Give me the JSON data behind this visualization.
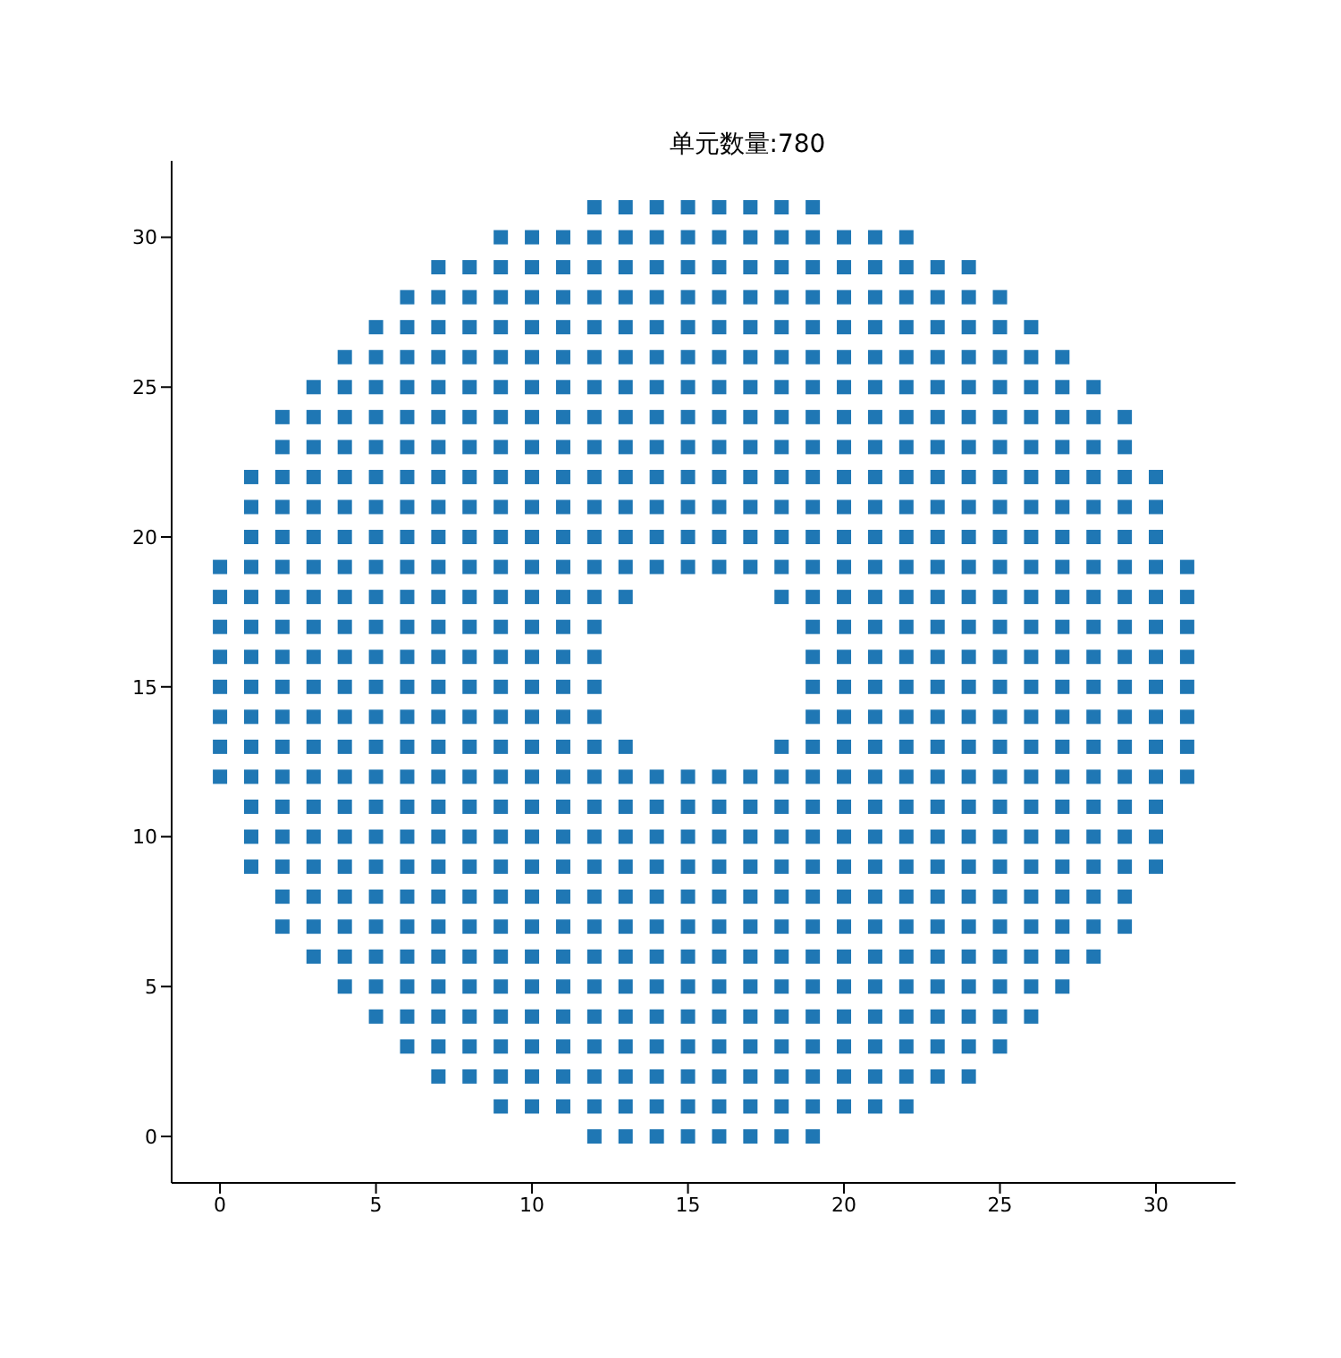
{
  "chart_data": {
    "type": "scatter",
    "title": "单元数量:780",
    "xlim": [
      -1.55,
      32.55
    ],
    "ylim": [
      -1.55,
      32.55
    ],
    "xticks": [
      0,
      5,
      10,
      15,
      20,
      25,
      30
    ],
    "yticks": [
      0,
      5,
      10,
      15,
      20,
      25,
      30
    ],
    "grid": false,
    "legend": false,
    "marker": "square",
    "series": [
      {
        "color": "#1f77b4",
        "x": [
          12,
          13,
          14,
          15,
          16,
          17,
          18,
          19
        ],
        "values": [
          0,
          0,
          0,
          0,
          0,
          0,
          0,
          0
        ]
      },
      {
        "color": "#1f77b4",
        "x": [
          9,
          10,
          11,
          12,
          13,
          14,
          15,
          16,
          17,
          18,
          19,
          20,
          21,
          22
        ],
        "values": [
          1,
          1,
          1,
          1,
          1,
          1,
          1,
          1,
          1,
          1,
          1,
          1,
          1,
          1
        ]
      },
      {
        "color": "#1f77b4",
        "x": [
          7,
          8,
          9,
          10,
          11,
          12,
          13,
          14,
          15,
          16,
          17,
          18,
          19,
          20,
          21,
          22,
          23,
          24
        ],
        "values": [
          2,
          2,
          2,
          2,
          2,
          2,
          2,
          2,
          2,
          2,
          2,
          2,
          2,
          2,
          2,
          2,
          2,
          2
        ]
      },
      {
        "color": "#1f77b4",
        "x": [
          6,
          7,
          8,
          9,
          10,
          11,
          12,
          13,
          14,
          15,
          16,
          17,
          18,
          19,
          20,
          21,
          22,
          23,
          24,
          25
        ],
        "values": [
          3,
          3,
          3,
          3,
          3,
          3,
          3,
          3,
          3,
          3,
          3,
          3,
          3,
          3,
          3,
          3,
          3,
          3,
          3,
          3
        ]
      },
      {
        "color": "#1f77b4",
        "x": [
          5,
          6,
          7,
          8,
          9,
          10,
          11,
          12,
          13,
          14,
          15,
          16,
          17,
          18,
          19,
          20,
          21,
          22,
          23,
          24,
          25,
          26
        ],
        "values": [
          4,
          4,
          4,
          4,
          4,
          4,
          4,
          4,
          4,
          4,
          4,
          4,
          4,
          4,
          4,
          4,
          4,
          4,
          4,
          4,
          4,
          4
        ]
      },
      {
        "color": "#1f77b4",
        "x": [
          4,
          5,
          6,
          7,
          8,
          9,
          10,
          11,
          12,
          13,
          14,
          15,
          16,
          17,
          18,
          19,
          20,
          21,
          22,
          23,
          24,
          25,
          26,
          27
        ],
        "values": [
          5,
          5,
          5,
          5,
          5,
          5,
          5,
          5,
          5,
          5,
          5,
          5,
          5,
          5,
          5,
          5,
          5,
          5,
          5,
          5,
          5,
          5,
          5,
          5
        ]
      },
      {
        "color": "#1f77b4",
        "x": [
          3,
          4,
          5,
          6,
          7,
          8,
          9,
          10,
          11,
          12,
          13,
          14,
          15,
          16,
          17,
          18,
          19,
          20,
          21,
          22,
          23,
          24,
          25,
          26,
          27,
          28
        ],
        "values": [
          6,
          6,
          6,
          6,
          6,
          6,
          6,
          6,
          6,
          6,
          6,
          6,
          6,
          6,
          6,
          6,
          6,
          6,
          6,
          6,
          6,
          6,
          6,
          6,
          6,
          6
        ]
      },
      {
        "color": "#1f77b4",
        "x": [
          2,
          3,
          4,
          5,
          6,
          7,
          8,
          9,
          10,
          11,
          12,
          13,
          14,
          15,
          16,
          17,
          18,
          19,
          20,
          21,
          22,
          23,
          24,
          25,
          26,
          27,
          28,
          29
        ],
        "values": [
          7,
          7,
          7,
          7,
          7,
          7,
          7,
          7,
          7,
          7,
          7,
          7,
          7,
          7,
          7,
          7,
          7,
          7,
          7,
          7,
          7,
          7,
          7,
          7,
          7,
          7,
          7,
          7
        ]
      },
      {
        "color": "#1f77b4",
        "x": [
          2,
          3,
          4,
          5,
          6,
          7,
          8,
          9,
          10,
          11,
          12,
          13,
          14,
          15,
          16,
          17,
          18,
          19,
          20,
          21,
          22,
          23,
          24,
          25,
          26,
          27,
          28,
          29
        ],
        "values": [
          8,
          8,
          8,
          8,
          8,
          8,
          8,
          8,
          8,
          8,
          8,
          8,
          8,
          8,
          8,
          8,
          8,
          8,
          8,
          8,
          8,
          8,
          8,
          8,
          8,
          8,
          8,
          8
        ]
      },
      {
        "color": "#1f77b4",
        "x": [
          1,
          2,
          3,
          4,
          5,
          6,
          7,
          8,
          9,
          10,
          11,
          12,
          13,
          14,
          15,
          16,
          17,
          18,
          19,
          20,
          21,
          22,
          23,
          24,
          25,
          26,
          27,
          28,
          29,
          30
        ],
        "values": [
          9,
          9,
          9,
          9,
          9,
          9,
          9,
          9,
          9,
          9,
          9,
          9,
          9,
          9,
          9,
          9,
          9,
          9,
          9,
          9,
          9,
          9,
          9,
          9,
          9,
          9,
          9,
          9,
          9,
          9
        ]
      },
      {
        "color": "#1f77b4",
        "x": [
          1,
          2,
          3,
          4,
          5,
          6,
          7,
          8,
          9,
          10,
          11,
          12,
          13,
          14,
          15,
          16,
          17,
          18,
          19,
          20,
          21,
          22,
          23,
          24,
          25,
          26,
          27,
          28,
          29,
          30
        ],
        "values": [
          10,
          10,
          10,
          10,
          10,
          10,
          10,
          10,
          10,
          10,
          10,
          10,
          10,
          10,
          10,
          10,
          10,
          10,
          10,
          10,
          10,
          10,
          10,
          10,
          10,
          10,
          10,
          10,
          10,
          10
        ]
      },
      {
        "color": "#1f77b4",
        "x": [
          1,
          2,
          3,
          4,
          5,
          6,
          7,
          8,
          9,
          10,
          11,
          12,
          13,
          14,
          15,
          16,
          17,
          18,
          19,
          20,
          21,
          22,
          23,
          24,
          25,
          26,
          27,
          28,
          29,
          30
        ],
        "values": [
          11,
          11,
          11,
          11,
          11,
          11,
          11,
          11,
          11,
          11,
          11,
          11,
          11,
          11,
          11,
          11,
          11,
          11,
          11,
          11,
          11,
          11,
          11,
          11,
          11,
          11,
          11,
          11,
          11,
          11
        ]
      },
      {
        "color": "#1f77b4",
        "x": [
          0,
          1,
          2,
          3,
          4,
          5,
          6,
          7,
          8,
          9,
          10,
          11,
          12,
          13,
          14,
          15,
          16,
          17,
          18,
          19,
          20,
          21,
          22,
          23,
          24,
          25,
          26,
          27,
          28,
          29,
          30,
          31
        ],
        "values": [
          12,
          12,
          12,
          12,
          12,
          12,
          12,
          12,
          12,
          12,
          12,
          12,
          12,
          12,
          12,
          12,
          12,
          12,
          12,
          12,
          12,
          12,
          12,
          12,
          12,
          12,
          12,
          12,
          12,
          12,
          12,
          12
        ]
      },
      {
        "color": "#1f77b4",
        "x": [
          0,
          1,
          2,
          3,
          4,
          5,
          6,
          7,
          8,
          9,
          10,
          11,
          12,
          13,
          18,
          19,
          20,
          21,
          22,
          23,
          24,
          25,
          26,
          27,
          28,
          29,
          30,
          31
        ],
        "values": [
          13,
          13,
          13,
          13,
          13,
          13,
          13,
          13,
          13,
          13,
          13,
          13,
          13,
          13,
          13,
          13,
          13,
          13,
          13,
          13,
          13,
          13,
          13,
          13,
          13,
          13,
          13,
          13
        ]
      },
      {
        "color": "#1f77b4",
        "x": [
          0,
          1,
          2,
          3,
          4,
          5,
          6,
          7,
          8,
          9,
          10,
          11,
          12,
          19,
          20,
          21,
          22,
          23,
          24,
          25,
          26,
          27,
          28,
          29,
          30,
          31
        ],
        "values": [
          14,
          14,
          14,
          14,
          14,
          14,
          14,
          14,
          14,
          14,
          14,
          14,
          14,
          14,
          14,
          14,
          14,
          14,
          14,
          14,
          14,
          14,
          14,
          14,
          14,
          14
        ]
      },
      {
        "color": "#1f77b4",
        "x": [
          0,
          1,
          2,
          3,
          4,
          5,
          6,
          7,
          8,
          9,
          10,
          11,
          12,
          19,
          20,
          21,
          22,
          23,
          24,
          25,
          26,
          27,
          28,
          29,
          30,
          31
        ],
        "values": [
          15,
          15,
          15,
          15,
          15,
          15,
          15,
          15,
          15,
          15,
          15,
          15,
          15,
          15,
          15,
          15,
          15,
          15,
          15,
          15,
          15,
          15,
          15,
          15,
          15,
          15
        ]
      },
      {
        "color": "#1f77b4",
        "x": [
          0,
          1,
          2,
          3,
          4,
          5,
          6,
          7,
          8,
          9,
          10,
          11,
          12,
          19,
          20,
          21,
          22,
          23,
          24,
          25,
          26,
          27,
          28,
          29,
          30,
          31
        ],
        "values": [
          16,
          16,
          16,
          16,
          16,
          16,
          16,
          16,
          16,
          16,
          16,
          16,
          16,
          16,
          16,
          16,
          16,
          16,
          16,
          16,
          16,
          16,
          16,
          16,
          16,
          16
        ]
      },
      {
        "color": "#1f77b4",
        "x": [
          0,
          1,
          2,
          3,
          4,
          5,
          6,
          7,
          8,
          9,
          10,
          11,
          12,
          19,
          20,
          21,
          22,
          23,
          24,
          25,
          26,
          27,
          28,
          29,
          30,
          31
        ],
        "values": [
          17,
          17,
          17,
          17,
          17,
          17,
          17,
          17,
          17,
          17,
          17,
          17,
          17,
          17,
          17,
          17,
          17,
          17,
          17,
          17,
          17,
          17,
          17,
          17,
          17,
          17
        ]
      },
      {
        "color": "#1f77b4",
        "x": [
          0,
          1,
          2,
          3,
          4,
          5,
          6,
          7,
          8,
          9,
          10,
          11,
          12,
          13,
          18,
          19,
          20,
          21,
          22,
          23,
          24,
          25,
          26,
          27,
          28,
          29,
          30,
          31
        ],
        "values": [
          18,
          18,
          18,
          18,
          18,
          18,
          18,
          18,
          18,
          18,
          18,
          18,
          18,
          18,
          18,
          18,
          18,
          18,
          18,
          18,
          18,
          18,
          18,
          18,
          18,
          18,
          18,
          18
        ]
      },
      {
        "color": "#1f77b4",
        "x": [
          0,
          1,
          2,
          3,
          4,
          5,
          6,
          7,
          8,
          9,
          10,
          11,
          12,
          13,
          14,
          15,
          16,
          17,
          18,
          19,
          20,
          21,
          22,
          23,
          24,
          25,
          26,
          27,
          28,
          29,
          30,
          31
        ],
        "values": [
          19,
          19,
          19,
          19,
          19,
          19,
          19,
          19,
          19,
          19,
          19,
          19,
          19,
          19,
          19,
          19,
          19,
          19,
          19,
          19,
          19,
          19,
          19,
          19,
          19,
          19,
          19,
          19,
          19,
          19,
          19,
          19
        ]
      },
      {
        "color": "#1f77b4",
        "x": [
          1,
          2,
          3,
          4,
          5,
          6,
          7,
          8,
          9,
          10,
          11,
          12,
          13,
          14,
          15,
          16,
          17,
          18,
          19,
          20,
          21,
          22,
          23,
          24,
          25,
          26,
          27,
          28,
          29,
          30
        ],
        "values": [
          20,
          20,
          20,
          20,
          20,
          20,
          20,
          20,
          20,
          20,
          20,
          20,
          20,
          20,
          20,
          20,
          20,
          20,
          20,
          20,
          20,
          20,
          20,
          20,
          20,
          20,
          20,
          20,
          20,
          20
        ]
      },
      {
        "color": "#1f77b4",
        "x": [
          1,
          2,
          3,
          4,
          5,
          6,
          7,
          8,
          9,
          10,
          11,
          12,
          13,
          14,
          15,
          16,
          17,
          18,
          19,
          20,
          21,
          22,
          23,
          24,
          25,
          26,
          27,
          28,
          29,
          30
        ],
        "values": [
          21,
          21,
          21,
          21,
          21,
          21,
          21,
          21,
          21,
          21,
          21,
          21,
          21,
          21,
          21,
          21,
          21,
          21,
          21,
          21,
          21,
          21,
          21,
          21,
          21,
          21,
          21,
          21,
          21,
          21
        ]
      },
      {
        "color": "#1f77b4",
        "x": [
          1,
          2,
          3,
          4,
          5,
          6,
          7,
          8,
          9,
          10,
          11,
          12,
          13,
          14,
          15,
          16,
          17,
          18,
          19,
          20,
          21,
          22,
          23,
          24,
          25,
          26,
          27,
          28,
          29,
          30
        ],
        "values": [
          22,
          22,
          22,
          22,
          22,
          22,
          22,
          22,
          22,
          22,
          22,
          22,
          22,
          22,
          22,
          22,
          22,
          22,
          22,
          22,
          22,
          22,
          22,
          22,
          22,
          22,
          22,
          22,
          22,
          22
        ]
      },
      {
        "color": "#1f77b4",
        "x": [
          2,
          3,
          4,
          5,
          6,
          7,
          8,
          9,
          10,
          11,
          12,
          13,
          14,
          15,
          16,
          17,
          18,
          19,
          20,
          21,
          22,
          23,
          24,
          25,
          26,
          27,
          28,
          29
        ],
        "values": [
          23,
          23,
          23,
          23,
          23,
          23,
          23,
          23,
          23,
          23,
          23,
          23,
          23,
          23,
          23,
          23,
          23,
          23,
          23,
          23,
          23,
          23,
          23,
          23,
          23,
          23,
          23,
          23
        ]
      },
      {
        "color": "#1f77b4",
        "x": [
          2,
          3,
          4,
          5,
          6,
          7,
          8,
          9,
          10,
          11,
          12,
          13,
          14,
          15,
          16,
          17,
          18,
          19,
          20,
          21,
          22,
          23,
          24,
          25,
          26,
          27,
          28,
          29
        ],
        "values": [
          24,
          24,
          24,
          24,
          24,
          24,
          24,
          24,
          24,
          24,
          24,
          24,
          24,
          24,
          24,
          24,
          24,
          24,
          24,
          24,
          24,
          24,
          24,
          24,
          24,
          24,
          24,
          24
        ]
      },
      {
        "color": "#1f77b4",
        "x": [
          3,
          4,
          5,
          6,
          7,
          8,
          9,
          10,
          11,
          12,
          13,
          14,
          15,
          16,
          17,
          18,
          19,
          20,
          21,
          22,
          23,
          24,
          25,
          26,
          27,
          28
        ],
        "values": [
          25,
          25,
          25,
          25,
          25,
          25,
          25,
          25,
          25,
          25,
          25,
          25,
          25,
          25,
          25,
          25,
          25,
          25,
          25,
          25,
          25,
          25,
          25,
          25,
          25,
          25
        ]
      },
      {
        "color": "#1f77b4",
        "x": [
          4,
          5,
          6,
          7,
          8,
          9,
          10,
          11,
          12,
          13,
          14,
          15,
          16,
          17,
          18,
          19,
          20,
          21,
          22,
          23,
          24,
          25,
          26,
          27
        ],
        "values": [
          26,
          26,
          26,
          26,
          26,
          26,
          26,
          26,
          26,
          26,
          26,
          26,
          26,
          26,
          26,
          26,
          26,
          26,
          26,
          26,
          26,
          26,
          26,
          26
        ]
      },
      {
        "color": "#1f77b4",
        "x": [
          5,
          6,
          7,
          8,
          9,
          10,
          11,
          12,
          13,
          14,
          15,
          16,
          17,
          18,
          19,
          20,
          21,
          22,
          23,
          24,
          25,
          26
        ],
        "values": [
          27,
          27,
          27,
          27,
          27,
          27,
          27,
          27,
          27,
          27,
          27,
          27,
          27,
          27,
          27,
          27,
          27,
          27,
          27,
          27,
          27,
          27
        ]
      },
      {
        "color": "#1f77b4",
        "x": [
          6,
          7,
          8,
          9,
          10,
          11,
          12,
          13,
          14,
          15,
          16,
          17,
          18,
          19,
          20,
          21,
          22,
          23,
          24,
          25
        ],
        "values": [
          28,
          28,
          28,
          28,
          28,
          28,
          28,
          28,
          28,
          28,
          28,
          28,
          28,
          28,
          28,
          28,
          28,
          28,
          28,
          28
        ]
      },
      {
        "color": "#1f77b4",
        "x": [
          7,
          8,
          9,
          10,
          11,
          12,
          13,
          14,
          15,
          16,
          17,
          18,
          19,
          20,
          21,
          22,
          23,
          24
        ],
        "values": [
          29,
          29,
          29,
          29,
          29,
          29,
          29,
          29,
          29,
          29,
          29,
          29,
          29,
          29,
          29,
          29,
          29,
          29
        ]
      },
      {
        "color": "#1f77b4",
        "x": [
          9,
          10,
          11,
          12,
          13,
          14,
          15,
          16,
          17,
          18,
          19,
          20,
          21,
          22
        ],
        "values": [
          30,
          30,
          30,
          30,
          30,
          30,
          30,
          30,
          30,
          30,
          30,
          30,
          30,
          30
        ]
      },
      {
        "color": "#1f77b4",
        "x": [
          12,
          13,
          14,
          15,
          16,
          17,
          18,
          19
        ],
        "values": [
          31,
          31,
          31,
          31,
          31,
          31,
          31,
          31
        ]
      }
    ]
  }
}
